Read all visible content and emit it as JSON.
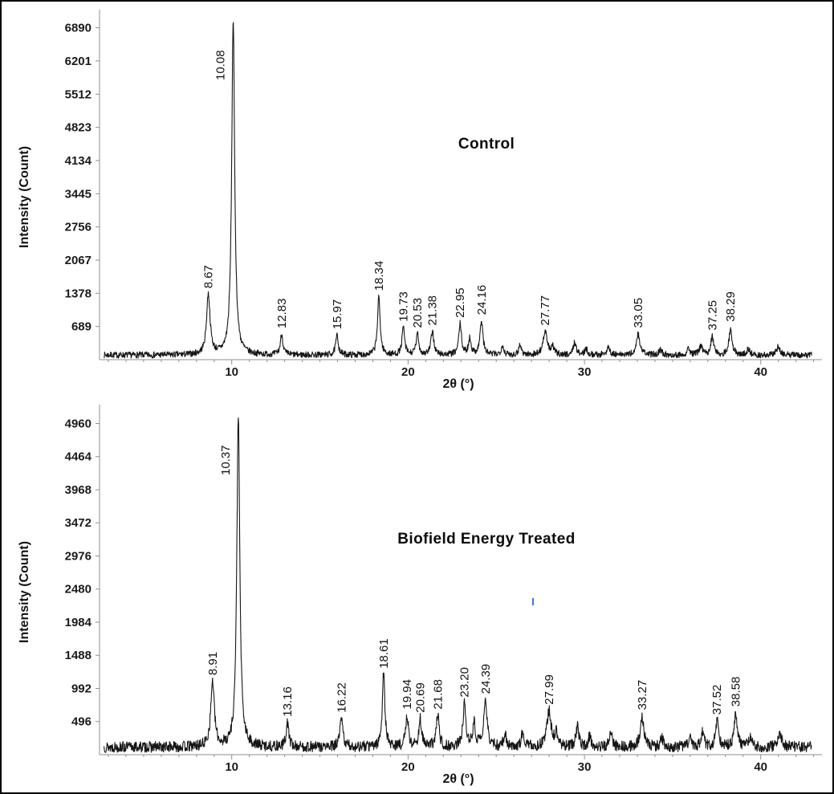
{
  "figure": {
    "background": "#ffffff",
    "border_color": "#000000",
    "trace_color": "#161616",
    "axis_color": "#8f8f8f",
    "artifact_color": "#4a6fd4"
  },
  "chart_data": [
    {
      "type": "line",
      "title": "Control",
      "xlabel": "2θ (°)",
      "ylabel": "Intensity (Count)",
      "xlim": [
        2.5,
        43.2
      ],
      "ylim": [
        0,
        7000
      ],
      "xticks": [
        10,
        20,
        30,
        40
      ],
      "yticks": [
        689,
        1378,
        2067,
        2756,
        3445,
        4134,
        4823,
        5512,
        6201,
        6890
      ],
      "grid": false,
      "legend": "none",
      "baseline": 30,
      "noise": 130,
      "peaks": [
        {
          "x": 8.67,
          "y": 1250,
          "w": 0.12,
          "label": "8.67"
        },
        {
          "x": 10.08,
          "y": 6950,
          "w": 0.1,
          "label": "10.08"
        },
        {
          "x": 12.83,
          "y": 420,
          "w": 0.09,
          "label": "12.83"
        },
        {
          "x": 15.97,
          "y": 400,
          "w": 0.09,
          "label": "15.97"
        },
        {
          "x": 18.34,
          "y": 1200,
          "w": 0.09,
          "label": "18.34"
        },
        {
          "x": 19.73,
          "y": 560,
          "w": 0.09,
          "label": "19.73"
        },
        {
          "x": 20.53,
          "y": 430,
          "w": 0.09,
          "label": "20.53"
        },
        {
          "x": 21.38,
          "y": 480,
          "w": 0.1,
          "label": "21.38"
        },
        {
          "x": 22.95,
          "y": 640,
          "w": 0.09,
          "label": "22.95"
        },
        {
          "x": 24.16,
          "y": 700,
          "w": 0.1,
          "label": "24.16"
        },
        {
          "x": 27.77,
          "y": 480,
          "w": 0.14,
          "label": "27.77"
        },
        {
          "x": 33.05,
          "y": 430,
          "w": 0.12,
          "label": "33.05"
        },
        {
          "x": 37.25,
          "y": 380,
          "w": 0.1,
          "label": "37.25"
        },
        {
          "x": 38.29,
          "y": 560,
          "w": 0.1,
          "label": "38.29"
        }
      ],
      "minor_peaks": [
        {
          "x": 23.5,
          "y": 330,
          "w": 0.09
        },
        {
          "x": 25.35,
          "y": 190,
          "w": 0.09
        },
        {
          "x": 26.35,
          "y": 210,
          "w": 0.09
        },
        {
          "x": 28.2,
          "y": 150,
          "w": 0.1
        },
        {
          "x": 29.45,
          "y": 260,
          "w": 0.1
        },
        {
          "x": 30.1,
          "y": 130,
          "w": 0.09
        },
        {
          "x": 31.35,
          "y": 170,
          "w": 0.1
        },
        {
          "x": 34.3,
          "y": 110,
          "w": 0.1
        },
        {
          "x": 35.9,
          "y": 140,
          "w": 0.1
        },
        {
          "x": 36.6,
          "y": 190,
          "w": 0.1
        },
        {
          "x": 39.3,
          "y": 120,
          "w": 0.1
        },
        {
          "x": 41.0,
          "y": 170,
          "w": 0.12
        }
      ]
    },
    {
      "type": "line",
      "title": "Biofield Energy Treated",
      "xlabel": "2θ (°)",
      "ylabel": "Intensity (Count)",
      "xlim": [
        2.5,
        43.2
      ],
      "ylim": [
        0,
        5050
      ],
      "xticks": [
        10,
        20,
        30,
        40
      ],
      "yticks": [
        496,
        992,
        1488,
        1984,
        2480,
        2976,
        3472,
        3968,
        4464,
        4960
      ],
      "grid": false,
      "legend": "none",
      "baseline": 30,
      "noise": 165,
      "peaks": [
        {
          "x": 8.91,
          "y": 980,
          "w": 0.12,
          "label": "8.91"
        },
        {
          "x": 10.37,
          "y": 5000,
          "w": 0.1,
          "label": "10.37"
        },
        {
          "x": 13.16,
          "y": 360,
          "w": 0.09,
          "label": "13.16"
        },
        {
          "x": 16.22,
          "y": 420,
          "w": 0.1,
          "label": "16.22"
        },
        {
          "x": 18.61,
          "y": 1080,
          "w": 0.09,
          "label": "18.61"
        },
        {
          "x": 19.94,
          "y": 470,
          "w": 0.09,
          "label": "19.94"
        },
        {
          "x": 20.69,
          "y": 420,
          "w": 0.09,
          "label": "20.69"
        },
        {
          "x": 21.68,
          "y": 470,
          "w": 0.1,
          "label": "21.68"
        },
        {
          "x": 23.2,
          "y": 650,
          "w": 0.1,
          "label": "23.20"
        },
        {
          "x": 24.39,
          "y": 700,
          "w": 0.11,
          "label": "24.39"
        },
        {
          "x": 27.99,
          "y": 540,
          "w": 0.14,
          "label": "27.99"
        },
        {
          "x": 33.27,
          "y": 460,
          "w": 0.12,
          "label": "33.27"
        },
        {
          "x": 37.52,
          "y": 390,
          "w": 0.1,
          "label": "37.52"
        },
        {
          "x": 38.58,
          "y": 510,
          "w": 0.1,
          "label": "38.58"
        }
      ],
      "minor_peaks": [
        {
          "x": 23.75,
          "y": 340,
          "w": 0.09
        },
        {
          "x": 25.5,
          "y": 210,
          "w": 0.09
        },
        {
          "x": 26.5,
          "y": 230,
          "w": 0.09
        },
        {
          "x": 28.4,
          "y": 200,
          "w": 0.1
        },
        {
          "x": 29.6,
          "y": 300,
          "w": 0.1
        },
        {
          "x": 30.3,
          "y": 150,
          "w": 0.09
        },
        {
          "x": 31.5,
          "y": 190,
          "w": 0.1
        },
        {
          "x": 34.4,
          "y": 130,
          "w": 0.1
        },
        {
          "x": 36.0,
          "y": 160,
          "w": 0.1
        },
        {
          "x": 36.7,
          "y": 210,
          "w": 0.1
        },
        {
          "x": 39.4,
          "y": 140,
          "w": 0.1
        },
        {
          "x": 41.1,
          "y": 200,
          "w": 0.12
        }
      ]
    }
  ]
}
